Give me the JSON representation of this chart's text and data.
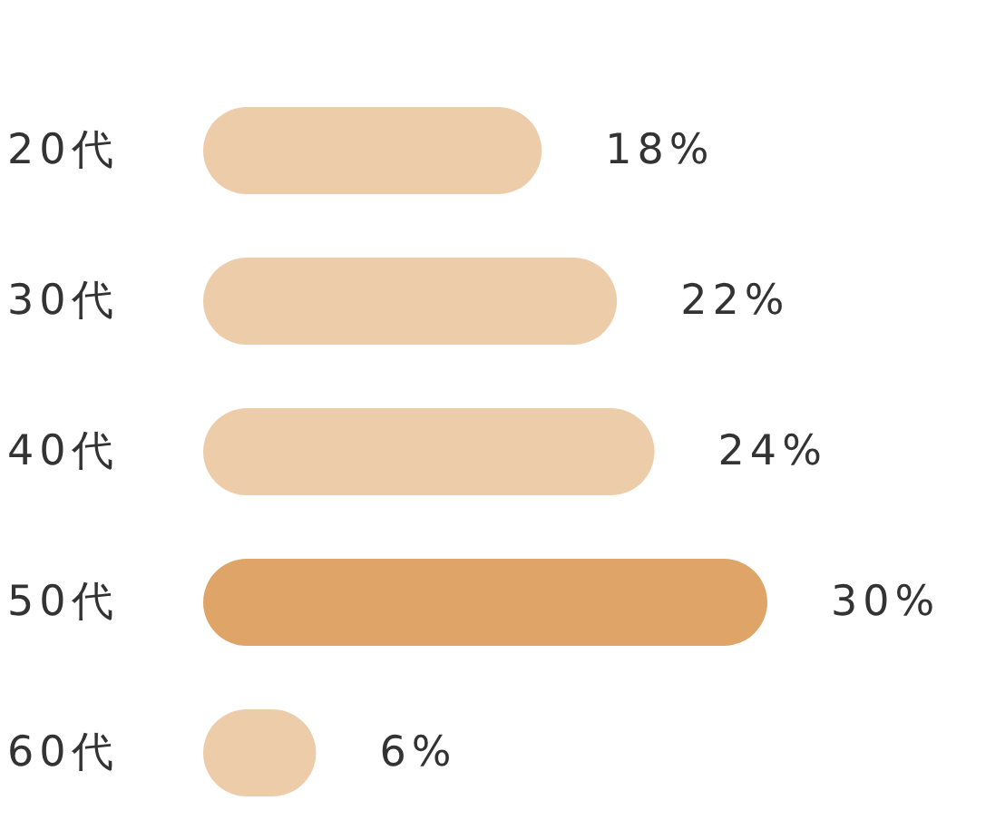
{
  "chart_data": {
    "type": "bar",
    "orientation": "horizontal",
    "categories": [
      "20代",
      "30代",
      "40代",
      "50代",
      "60代"
    ],
    "values": [
      18,
      22,
      24,
      30,
      6
    ],
    "colors": [
      "#edcda9",
      "#edcda9",
      "#edcda9",
      "#dea468",
      "#edcda9"
    ],
    "value_labels": [
      "18%",
      "22%",
      "24%",
      "30%",
      "6%"
    ]
  }
}
